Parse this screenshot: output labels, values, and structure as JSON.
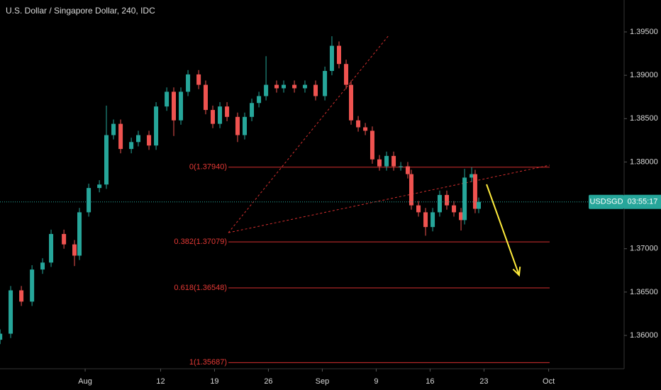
{
  "chart_data": {
    "type": "candlestick",
    "title": "U.S. Dollar / Singapore Dollar, 240, IDC",
    "symbol": "USDSGD",
    "countdown": "03:55:17",
    "x": [
      -7.89,
      -6.91,
      -5.92,
      -4.93,
      -3.95,
      -3.16,
      -1.97,
      -0.99,
      -0.53,
      0.33,
      1.32,
      1.97,
      2.63,
      3.29,
      4.28,
      4.93,
      5.92,
      6.58,
      7.57,
      8.22,
      8.88,
      9.54,
      10.53,
      11.18,
      11.84,
      12.5,
      13.16,
      14.14,
      14.8,
      15.46,
      16.12,
      16.78,
      17.76,
      18.42,
      19.41,
      20.39,
      21.38,
      22.24,
      22.89,
      23.55,
      24.21,
      24.67,
      25.33,
      25.99,
      26.64,
      27.3,
      27.96,
      28.62,
      29.28,
      29.93,
      30.26,
      30.92,
      31.58,
      32.24,
      32.89,
      33.55,
      34.21,
      34.87,
      35.2,
      35.86,
      36.18,
      36.51
    ],
    "open": [
      1.3595,
      1.3602,
      1.3652,
      1.3639,
      1.3676,
      1.3684,
      1.3717,
      1.3705,
      1.3692,
      1.3742,
      1.377,
      1.3774,
      1.3831,
      1.3844,
      1.3815,
      1.3823,
      1.3831,
      1.3819,
      1.3864,
      1.3881,
      1.3848,
      1.3881,
      1.3901,
      1.3889,
      1.386,
      1.3844,
      1.3864,
      1.3852,
      1.3831,
      1.3852,
      1.3868,
      1.3876,
      1.3889,
      1.3885,
      1.3889,
      1.3885,
      1.3889,
      1.3876,
      1.3905,
      1.3934,
      1.3913,
      1.3889,
      1.3848,
      1.384,
      1.3836,
      1.3803,
      1.3795,
      1.3807,
      1.3795,
      1.3795,
      1.3786,
      1.375,
      1.3742,
      1.3725,
      1.3742,
      1.3762,
      1.375,
      1.3742,
      1.3733,
      1.3782,
      1.3786,
      1.3746
    ],
    "high": [
      1.3607,
      1.3657,
      1.3657,
      1.3681,
      1.3689,
      1.3722,
      1.3722,
      1.371,
      1.3747,
      1.3775,
      1.3779,
      1.3865,
      1.3849,
      1.3849,
      1.3828,
      1.3836,
      1.3836,
      1.3869,
      1.3886,
      1.3886,
      1.3886,
      1.3906,
      1.3906,
      1.3894,
      1.3865,
      1.3869,
      1.3869,
      1.3857,
      1.3857,
      1.3873,
      1.3881,
      1.3922,
      1.3894,
      1.3894,
      1.3894,
      1.3894,
      1.3894,
      1.391,
      1.3945,
      1.3939,
      1.3918,
      1.3894,
      1.3853,
      1.3845,
      1.3841,
      1.3808,
      1.3812,
      1.3812,
      1.38,
      1.38,
      1.3791,
      1.3755,
      1.3747,
      1.3747,
      1.3767,
      1.3767,
      1.3755,
      1.3747,
      1.3792,
      1.3794,
      1.3791,
      1.3759
    ],
    "low": [
      1.359,
      1.3597,
      1.3634,
      1.3634,
      1.3671,
      1.3679,
      1.37,
      1.368,
      1.3687,
      1.3737,
      1.3765,
      1.3769,
      1.3826,
      1.381,
      1.381,
      1.3818,
      1.3814,
      1.3814,
      1.3859,
      1.383,
      1.3843,
      1.3876,
      1.3884,
      1.3855,
      1.3839,
      1.3839,
      1.3847,
      1.3823,
      1.3826,
      1.3847,
      1.3863,
      1.3871,
      1.388,
      1.388,
      1.388,
      1.388,
      1.3871,
      1.3871,
      1.39,
      1.3908,
      1.3884,
      1.3843,
      1.3835,
      1.3831,
      1.3798,
      1.379,
      1.379,
      1.379,
      1.379,
      1.3781,
      1.3745,
      1.3737,
      1.3715,
      1.372,
      1.3737,
      1.3745,
      1.3737,
      1.3721,
      1.3728,
      1.3777,
      1.3741,
      1.3741
    ],
    "close": [
      1.3602,
      1.3652,
      1.3639,
      1.3676,
      1.3684,
      1.3717,
      1.3705,
      1.3692,
      1.3742,
      1.377,
      1.3774,
      1.3831,
      1.3844,
      1.3815,
      1.3823,
      1.3831,
      1.3819,
      1.3864,
      1.3881,
      1.3848,
      1.3881,
      1.3901,
      1.3889,
      1.386,
      1.3844,
      1.3864,
      1.3852,
      1.3831,
      1.3852,
      1.3868,
      1.3876,
      1.3889,
      1.3885,
      1.3889,
      1.3885,
      1.3889,
      1.3876,
      1.3905,
      1.3934,
      1.3913,
      1.3889,
      1.3848,
      1.384,
      1.3836,
      1.3803,
      1.3795,
      1.3807,
      1.3795,
      1.3795,
      1.3786,
      1.375,
      1.3742,
      1.3725,
      1.3742,
      1.3762,
      1.375,
      1.3742,
      1.3733,
      1.3782,
      1.3786,
      1.3746,
      1.3754
    ],
    "up_color": "#26a69a",
    "down_color": "#ef5350",
    "xlim": [
      -7.9,
      50
    ],
    "ylim": [
      1.35616,
      1.39868
    ],
    "xticks": [
      {
        "value": 0,
        "label": "Aug"
      },
      {
        "value": 7,
        "label": "12"
      },
      {
        "value": 12,
        "label": "19"
      },
      {
        "value": 17,
        "label": "26"
      },
      {
        "value": 22,
        "label": "Sep"
      },
      {
        "value": 27,
        "label": "9"
      },
      {
        "value": 32,
        "label": "16"
      },
      {
        "value": 37,
        "label": "23"
      },
      {
        "value": 43,
        "label": "Oct"
      }
    ],
    "yticks": [
      {
        "value": 1.36,
        "label": "1.36000"
      },
      {
        "value": 1.365,
        "label": "1.36500"
      },
      {
        "value": 1.37,
        "label": "1.37000"
      },
      {
        "value": 1.375,
        "label": "1.37500"
      },
      {
        "value": 1.38,
        "label": "1.38000"
      },
      {
        "value": 1.385,
        "label": "1.38500"
      },
      {
        "value": 1.39,
        "label": "1.39000"
      },
      {
        "value": 1.395,
        "label": "1.39500"
      }
    ],
    "fib_range": [
      13.29,
      43.09
    ],
    "fib_color": "#d32f2f",
    "fib_levels": [
      {
        "value": 1.3794,
        "label": "0(1.37940)"
      },
      {
        "value": 1.37079,
        "label": "0.382(1.37079)"
      },
      {
        "value": 1.36548,
        "label": "0.618(1.36548)"
      },
      {
        "value": 1.35687,
        "label": "1(1.35687)"
      }
    ],
    "trendlines": [
      {
        "x": [
          13.29,
          28.16
        ],
        "y": [
          1.37185,
          1.39459
        ]
      },
      {
        "x": [
          13.29,
          43.09
        ],
        "y": [
          1.37185,
          1.37963
        ]
      }
    ],
    "arrow": {
      "x": [
        37.24,
        40.26
      ],
      "y": [
        1.37742,
        1.36695
      ],
      "color": "#ffeb3b"
    }
  }
}
